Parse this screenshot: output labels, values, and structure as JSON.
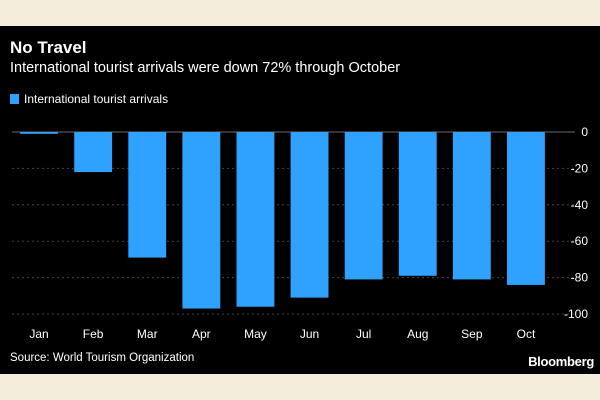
{
  "header": {
    "title": "No Travel",
    "subtitle": "International tourist arrivals were down 72% through October"
  },
  "legend": {
    "label": "International tourist arrivals"
  },
  "footer": {
    "source": "Source: World Tourism Organization",
    "brand": "Bloomberg"
  },
  "colors": {
    "bar": "#2fa1ff",
    "background": "#000000",
    "text": "#ffffff",
    "grid": "#444444",
    "page": "#f3eedc"
  },
  "chart_data": {
    "type": "bar",
    "title": "No Travel",
    "subtitle": "International tourist arrivals were down 72% through October",
    "categories": [
      "Jan",
      "Feb",
      "Mar",
      "Apr",
      "May",
      "Jun",
      "Jul",
      "Aug",
      "Sep",
      "Oct"
    ],
    "series": [
      {
        "name": "International tourist arrivals",
        "values": [
          -1,
          -22,
          -69,
          -97,
          -96,
          -91,
          -81,
          -79,
          -81,
          -84
        ]
      }
    ],
    "ylim": [
      -100,
      0
    ],
    "yticks": [
      0,
      -20,
      -40,
      -60,
      -80,
      -100
    ],
    "y_axis_side": "right",
    "grid": true,
    "legend_position": "top-left"
  }
}
